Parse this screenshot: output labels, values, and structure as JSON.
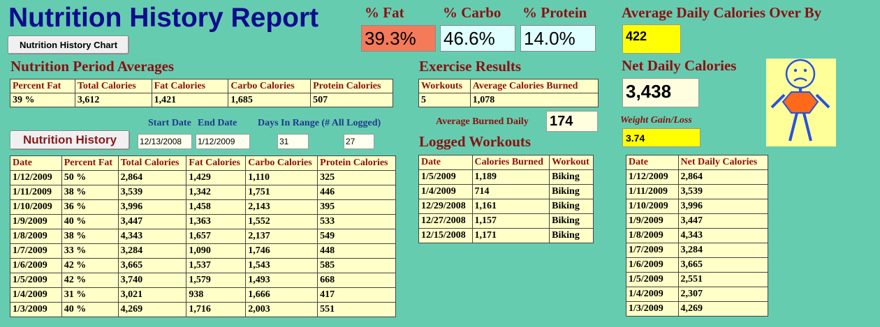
{
  "header": {
    "title": "Nutrition History Report",
    "chart_button_label": "Nutrition History Chart"
  },
  "macros": {
    "fat": {
      "label": "% Fat",
      "value": "39.3%",
      "color": "#f47a5a"
    },
    "carbo": {
      "label": "% Carbo",
      "value": "46.6%",
      "color": "#e0ffff"
    },
    "protein": {
      "label": "% Protein",
      "value": "14.0%",
      "color": "#e0ffff"
    }
  },
  "calorie_summary": {
    "over_by_label": "Average Daily Calories Over By",
    "over_by_value": "422",
    "net_label": "Net Daily Calories",
    "net_value": "3,438",
    "gain_loss_label": "Weight Gain/Loss",
    "gain_loss_value": "3.74",
    "avatar_icon": "sad-stick-figure-icon"
  },
  "period_averages": {
    "title": "Nutrition Period Averages",
    "columns": [
      "Percent Fat",
      "Total Calories",
      "Fat Calories",
      "Carbo Calories",
      "Protein Calories"
    ],
    "values": [
      "39 %",
      "3,612",
      "1,421",
      "1,685",
      "507"
    ]
  },
  "exercise": {
    "title": "Exercise Results",
    "columns": [
      "Workouts",
      "Average Calories Burned"
    ],
    "values": [
      "5",
      "1,078"
    ],
    "avg_burned_label": "Average Burned Daily",
    "avg_burned_value": "174"
  },
  "filters": {
    "history_button_label": "Nutrition History",
    "start_label": "Start Date",
    "end_label": "End Date",
    "days_label": "Days In Range (# All Logged)",
    "start_value": "12/13/2008",
    "end_value": "1/12/2009",
    "days_value": "31",
    "logged_value": "27"
  },
  "history": {
    "columns": [
      "Date",
      "Percent Fat",
      "Total Calories",
      "Fat Calories",
      "Carbo Calories",
      "Protein Calories"
    ],
    "rows": [
      [
        "1/12/2009",
        "50 %",
        "2,864",
        "1,429",
        "1,110",
        "325"
      ],
      [
        "1/11/2009",
        "38 %",
        "3,539",
        "1,342",
        "1,751",
        "446"
      ],
      [
        "1/10/2009",
        "36 %",
        "3,996",
        "1,458",
        "2,143",
        "395"
      ],
      [
        "1/9/2009",
        "40 %",
        "3,447",
        "1,363",
        "1,552",
        "533"
      ],
      [
        "1/8/2009",
        "38 %",
        "4,343",
        "1,657",
        "2,137",
        "549"
      ],
      [
        "1/7/2009",
        "33 %",
        "3,284",
        "1,090",
        "1,746",
        "448"
      ],
      [
        "1/6/2009",
        "42 %",
        "3,665",
        "1,537",
        "1,543",
        "585"
      ],
      [
        "1/5/2009",
        "42 %",
        "3,740",
        "1,579",
        "1,493",
        "668"
      ],
      [
        "1/4/2009",
        "31 %",
        "3,021",
        "938",
        "1,666",
        "417"
      ],
      [
        "1/3/2009",
        "40 %",
        "4,269",
        "1,716",
        "2,003",
        "551"
      ]
    ]
  },
  "workouts": {
    "title": "Logged Workouts",
    "columns": [
      "Date",
      "Calories Burned",
      "Workout"
    ],
    "rows": [
      [
        "1/5/2009",
        "1,189",
        "Biking"
      ],
      [
        "1/4/2009",
        "714",
        "Biking"
      ],
      [
        "12/29/2008",
        "1,161",
        "Biking"
      ],
      [
        "12/27/2008",
        "1,157",
        "Biking"
      ],
      [
        "12/15/2008",
        "1,171",
        "Biking"
      ]
    ]
  },
  "net_daily": {
    "columns": [
      "Date",
      "Net Daily Calories"
    ],
    "rows": [
      [
        "1/12/2009",
        "2,864"
      ],
      [
        "1/11/2009",
        "3,539"
      ],
      [
        "1/10/2009",
        "3,996"
      ],
      [
        "1/9/2009",
        "3,447"
      ],
      [
        "1/8/2009",
        "4,343"
      ],
      [
        "1/7/2009",
        "3,284"
      ],
      [
        "1/6/2009",
        "3,665"
      ],
      [
        "1/5/2009",
        "2,551"
      ],
      [
        "1/4/2009",
        "2,307"
      ],
      [
        "1/3/2009",
        "4,269"
      ]
    ]
  }
}
